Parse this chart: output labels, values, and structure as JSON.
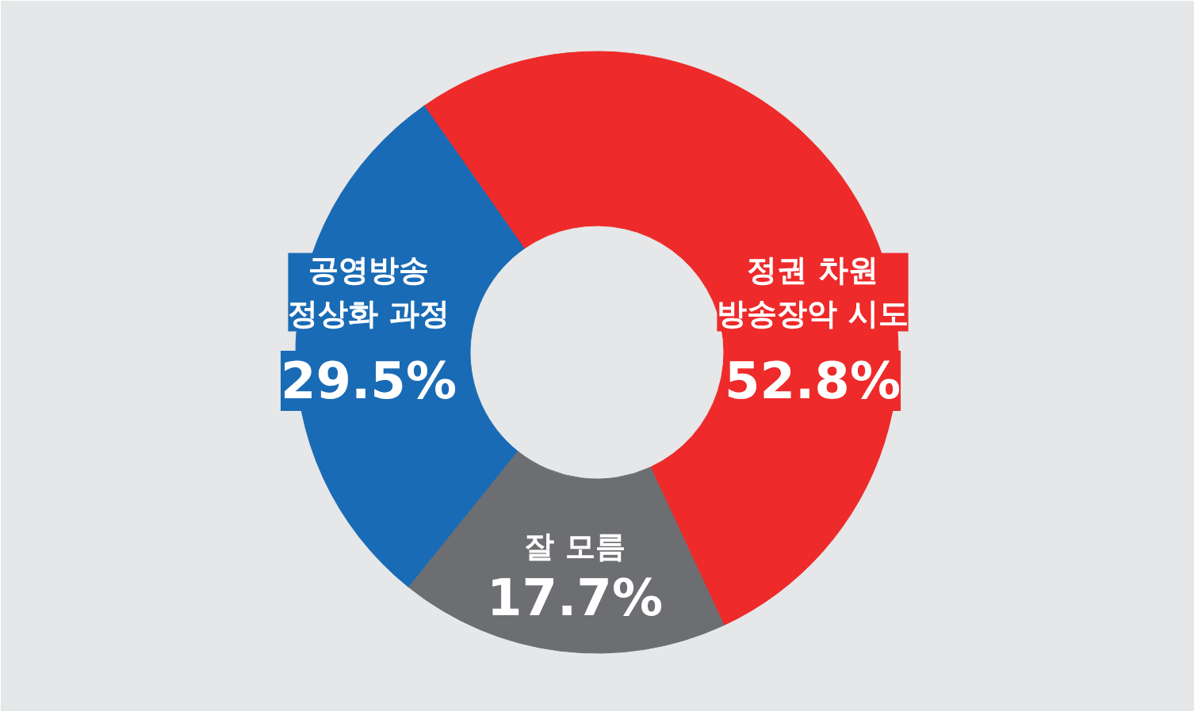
{
  "chart_data": {
    "type": "donut",
    "categories": [
      "정권 차원\n방송장악 시도",
      "잘 모름",
      "공영방송\n정상화 과정"
    ],
    "values": [
      52.8,
      17.7,
      29.5
    ],
    "colors": [
      "#ee2a2a",
      "#6d6e71",
      "#1a6bb5"
    ],
    "value_labels": [
      "52.8%",
      "17.7%",
      "29.5%"
    ]
  }
}
